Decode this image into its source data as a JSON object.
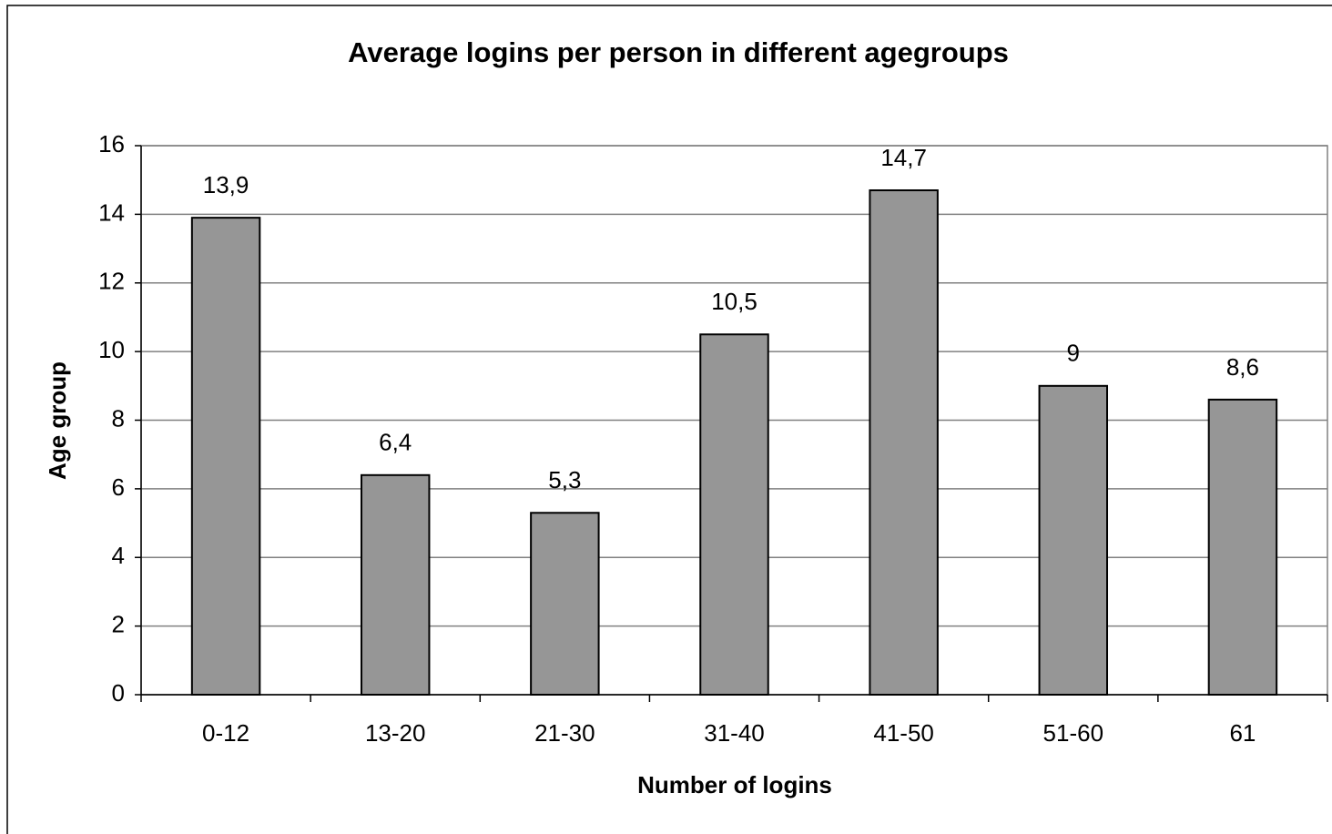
{
  "chart_data": {
    "type": "bar",
    "title": "Average logins per person in different agegroups",
    "x_label": "Number of logins",
    "y_label": "Age group",
    "categories": [
      "0-12",
      "13-20",
      "21-30",
      "31-40",
      "41-50",
      "51-60",
      "61"
    ],
    "values": [
      13.9,
      6.4,
      5.3,
      10.5,
      14.7,
      9,
      8.6
    ],
    "value_labels": [
      "13,9",
      "6,4",
      "5,3",
      "10,5",
      "14,7",
      "9",
      "8,6"
    ],
    "color": "#969696",
    "ylim": [
      0,
      16
    ],
    "yticks": [
      0,
      2,
      4,
      6,
      8,
      10,
      12,
      14,
      16
    ],
    "grid": true
  }
}
